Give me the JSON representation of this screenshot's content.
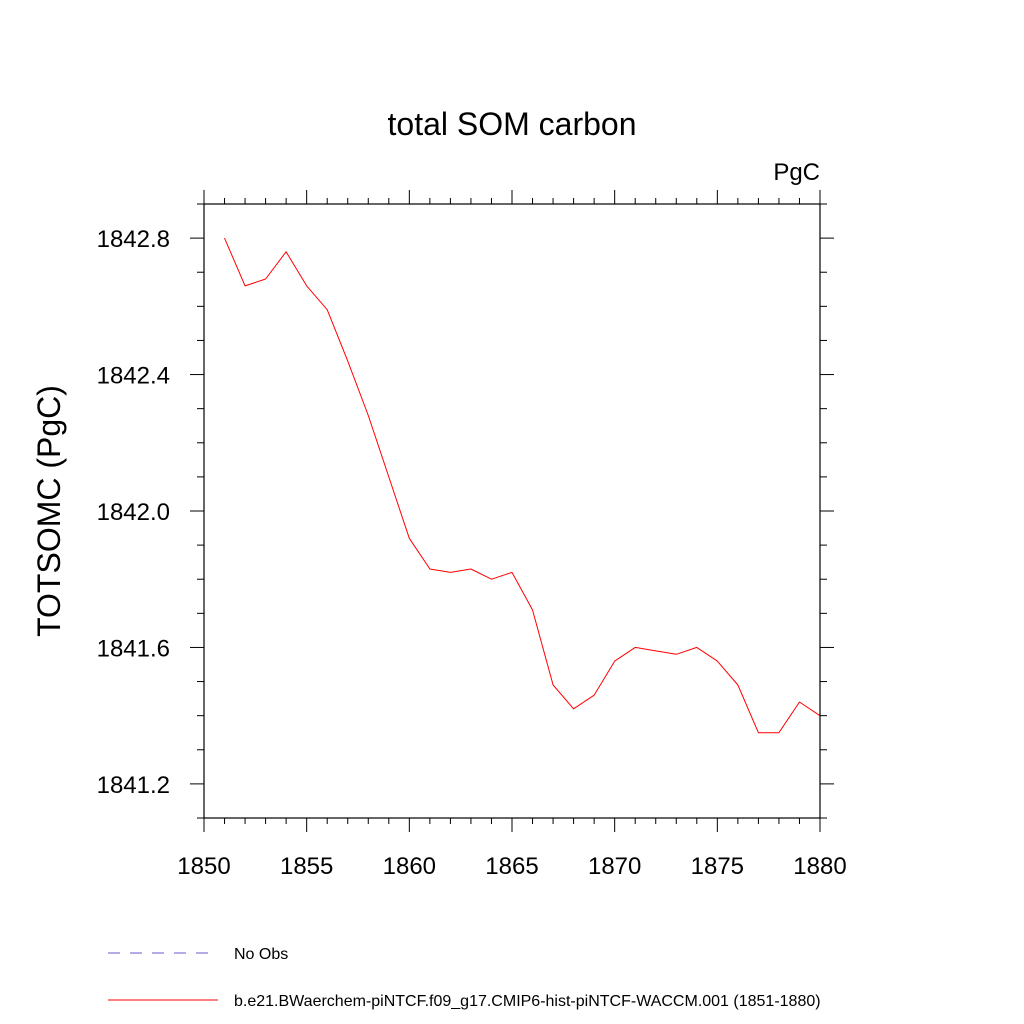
{
  "chart_data": {
    "type": "line",
    "title": "total SOM carbon",
    "units_label": "PgC",
    "xlabel": "",
    "ylabel": "TOTSOMC  (PgC)",
    "xlim": [
      1850,
      1880
    ],
    "ylim": [
      1841.1,
      1842.9
    ],
    "x_ticks": [
      "1850",
      "1855",
      "1860",
      "1865",
      "1870",
      "1875",
      "1880"
    ],
    "y_ticks": [
      "1841.2",
      "1841.6",
      "1842.0",
      "1842.4",
      "1842.8"
    ],
    "grid": false,
    "series": [
      {
        "name": "b.e21.BWaerchem-piNTCF.f09_g17.CMIP6-hist-piNTCF-WACCM.001 (1851-1880)",
        "color": "#ff0000",
        "style": "solid",
        "x": [
          1851,
          1852,
          1853,
          1854,
          1855,
          1856,
          1857,
          1858,
          1859,
          1860,
          1861,
          1862,
          1863,
          1864,
          1865,
          1866,
          1867,
          1868,
          1869,
          1870,
          1871,
          1872,
          1873,
          1874,
          1875,
          1876,
          1877,
          1878,
          1879,
          1880
        ],
        "y": [
          1842.8,
          1842.66,
          1842.68,
          1842.76,
          1842.66,
          1842.59,
          1842.44,
          1842.28,
          1842.1,
          1841.92,
          1841.83,
          1841.82,
          1841.83,
          1841.8,
          1841.82,
          1841.71,
          1841.49,
          1841.42,
          1841.46,
          1841.56,
          1841.6,
          1841.59,
          1841.58,
          1841.6,
          1841.56,
          1841.49,
          1841.35,
          1841.35,
          1841.44,
          1841.4
        ]
      }
    ],
    "legend": {
      "placement": "bottom",
      "entries": [
        {
          "label": "No Obs",
          "color": "#6a5acd",
          "style": "dashed"
        },
        {
          "label": "b.e21.BWaerchem-piNTCF.f09_g17.CMIP6-hist-piNTCF-WACCM.001 (1851-1880)",
          "color": "#ff0000",
          "style": "solid"
        }
      ]
    }
  }
}
